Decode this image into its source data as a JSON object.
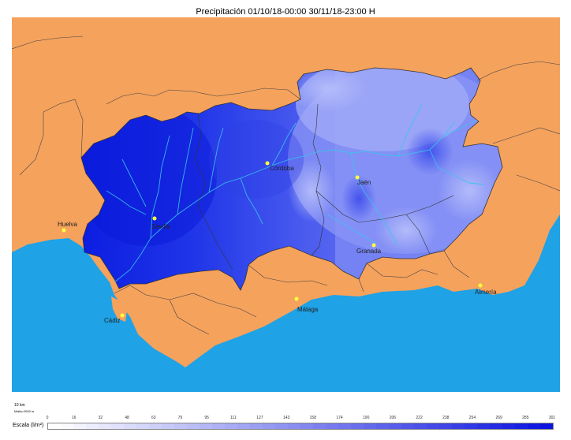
{
  "title": "Precipitación 01/10/18-00:00 30/11/18-23:00 H",
  "cities": [
    {
      "name": "Huelva"
    },
    {
      "name": "Sevilla"
    },
    {
      "name": "Córdoba"
    },
    {
      "name": "Jaén"
    },
    {
      "name": "Granada"
    },
    {
      "name": "Almería"
    },
    {
      "name": "Málaga"
    },
    {
      "name": "Cádiz"
    }
  ],
  "scale_bar": {
    "line1": "10 km",
    "line2": "Malla=2000 m"
  },
  "legend": {
    "label": "Escala (l/m²)",
    "ticks": [
      "0",
      "16",
      "32",
      "48",
      "63",
      "79",
      "95",
      "111",
      "127",
      "143",
      "158",
      "174",
      "190",
      "206",
      "222",
      "238",
      "254",
      "269",
      "285",
      "301"
    ]
  },
  "colors": {
    "land": "#f5a25d",
    "sea": "#1fa2e6",
    "low": "#c9cbf8",
    "high": "#0c1be0"
  }
}
